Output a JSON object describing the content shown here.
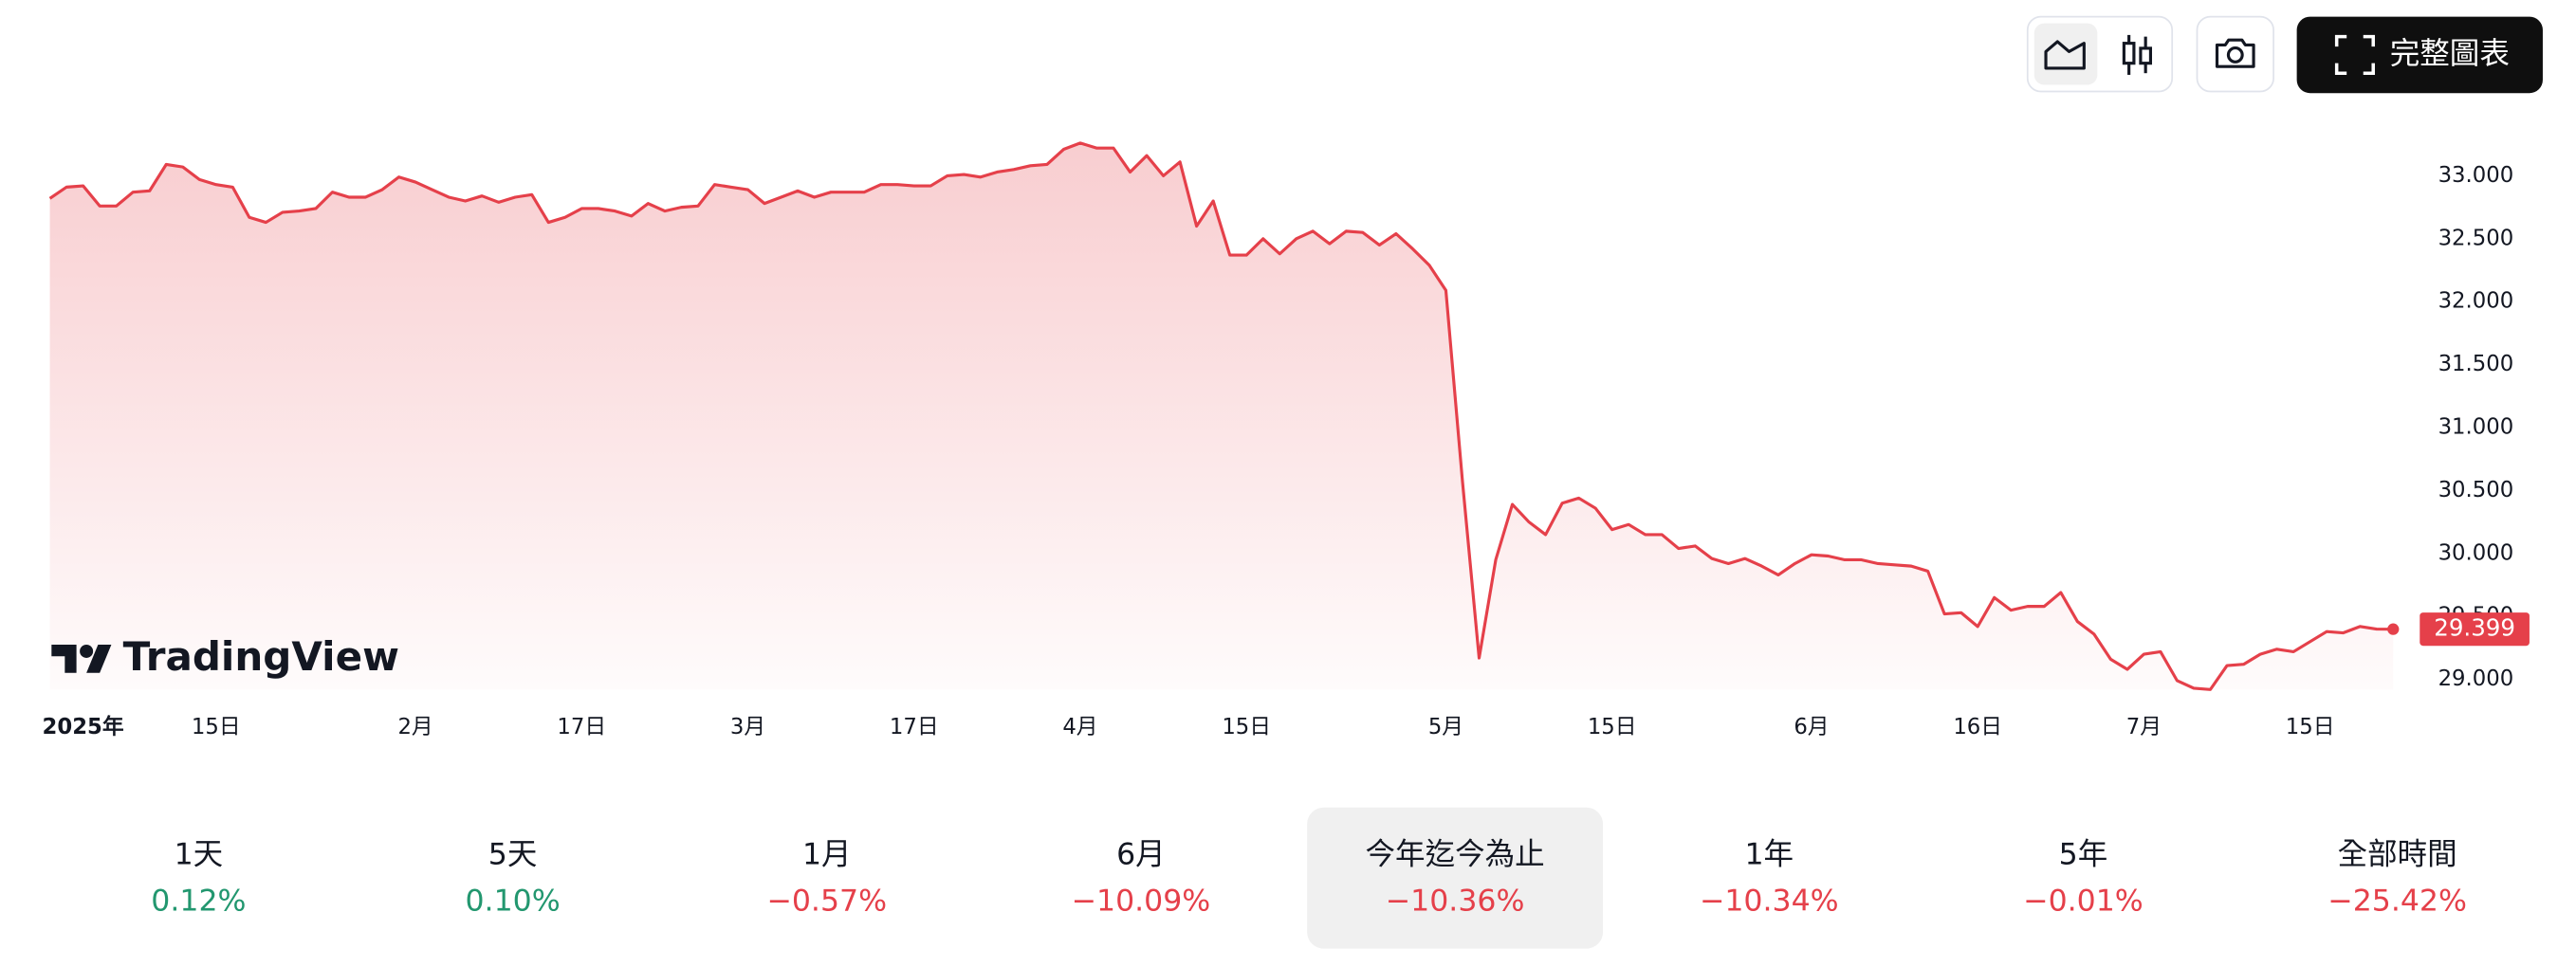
{
  "chart_data": {
    "type": "line",
    "categories": [
      null,
      null,
      "2025年",
      null,
      null,
      null,
      null,
      null,
      null,
      null,
      "15日",
      null,
      null,
      null,
      null,
      null,
      null,
      null,
      null,
      null,
      null,
      null,
      "2月",
      null,
      null,
      null,
      null,
      null,
      null,
      null,
      null,
      null,
      "17日",
      null,
      null,
      null,
      null,
      null,
      null,
      null,
      null,
      null,
      "3月",
      null,
      null,
      null,
      null,
      null,
      null,
      null,
      null,
      null,
      "17日",
      null,
      null,
      null,
      null,
      null,
      null,
      null,
      null,
      null,
      "4月",
      null,
      null,
      null,
      null,
      null,
      null,
      null,
      null,
      null,
      "15日",
      null,
      null,
      null,
      null,
      null,
      null,
      null,
      null,
      null,
      null,
      null,
      "5月",
      null,
      null,
      null,
      null,
      null,
      null,
      null,
      null,
      null,
      "15日",
      null,
      null,
      null,
      null,
      null,
      null,
      null,
      null,
      null,
      null,
      null,
      "6月",
      null,
      null,
      null,
      null,
      null,
      null,
      null,
      null,
      null,
      "16日",
      null,
      null,
      null,
      null,
      null,
      null,
      null,
      null,
      null,
      "7月",
      null,
      null,
      null,
      null,
      null,
      null,
      null,
      null,
      null,
      "15日",
      null,
      null,
      null,
      null,
      null
    ],
    "series": [
      {
        "color": "#e5404a",
        "values": [
          32.82,
          32.91,
          32.92,
          32.76,
          32.76,
          32.87,
          32.88,
          33.09,
          33.07,
          32.97,
          32.93,
          32.91,
          32.67,
          32.63,
          32.71,
          32.72,
          32.74,
          32.87,
          32.83,
          32.83,
          32.89,
          32.99,
          32.95,
          32.89,
          32.83,
          32.8,
          32.84,
          32.79,
          32.83,
          32.85,
          32.63,
          32.67,
          32.74,
          32.74,
          32.72,
          32.68,
          32.78,
          32.72,
          32.75,
          32.76,
          32.93,
          32.91,
          32.89,
          32.78,
          32.83,
          32.88,
          32.83,
          32.87,
          32.87,
          32.87,
          32.93,
          32.93,
          32.92,
          32.92,
          33.0,
          33.01,
          32.99,
          33.03,
          33.05,
          33.08,
          33.09,
          33.21,
          33.26,
          33.22,
          33.22,
          33.03,
          33.16,
          33.0,
          33.11,
          32.6,
          32.8,
          32.37,
          32.37,
          32.5,
          32.38,
          32.5,
          32.56,
          32.46,
          32.56,
          32.55,
          32.45,
          32.54,
          32.42,
          32.29,
          32.09,
          30.57,
          29.17,
          29.95,
          30.39,
          30.25,
          30.15,
          30.4,
          30.44,
          30.36,
          30.19,
          30.23,
          30.15,
          30.15,
          30.04,
          30.06,
          29.96,
          29.92,
          29.96,
          29.9,
          29.83,
          29.92,
          29.99,
          29.98,
          29.95,
          29.95,
          29.92,
          29.91,
          29.9,
          29.86,
          29.52,
          29.53,
          29.42,
          29.65,
          29.55,
          29.58,
          29.58,
          29.69,
          29.46,
          29.36,
          29.16,
          29.08,
          29.2,
          29.22,
          28.99,
          28.93,
          28.92,
          29.11,
          29.12,
          29.2,
          29.24,
          29.22,
          29.3,
          29.38,
          29.37,
          29.42,
          29.4,
          29.399
        ]
      }
    ],
    "last_value_label": "29.399",
    "ylim": [
      28.92,
      33.34
    ],
    "yticks": [
      {
        "value": 29,
        "label": "29.000"
      },
      {
        "value": 29.5,
        "label": "29.500"
      },
      {
        "value": 30,
        "label": "30.000"
      },
      {
        "value": 30.5,
        "label": "30.500"
      },
      {
        "value": 31,
        "label": "31.000"
      },
      {
        "value": 31.5,
        "label": "31.500"
      },
      {
        "value": 32,
        "label": "32.000"
      },
      {
        "value": 32.5,
        "label": "32.500"
      },
      {
        "value": 33,
        "label": "33.000"
      }
    ],
    "grid": false
  },
  "watermark": "TradingView",
  "toolbar": {
    "full_chart": "完整圖表"
  },
  "ranges": {
    "selected": 4,
    "up_color": "#22976f",
    "down_color": "#e5404a",
    "items": [
      {
        "label": "1天",
        "change": 0.12,
        "change_label": "0.12%"
      },
      {
        "label": "5天",
        "change": 0.1,
        "change_label": "0.10%"
      },
      {
        "label": "1月",
        "change": -0.57,
        "change_label": "−0.57%"
      },
      {
        "label": "6月",
        "change": -10.09,
        "change_label": "−10.09%"
      },
      {
        "label": "今年迄今為止",
        "change": -10.36,
        "change_label": "−10.36%"
      },
      {
        "label": "1年",
        "change": -10.34,
        "change_label": "−10.34%"
      },
      {
        "label": "5年",
        "change": -0.01,
        "change_label": "−0.01%"
      },
      {
        "label": "全部時間",
        "change": -25.42,
        "change_label": "−25.42%"
      }
    ]
  }
}
